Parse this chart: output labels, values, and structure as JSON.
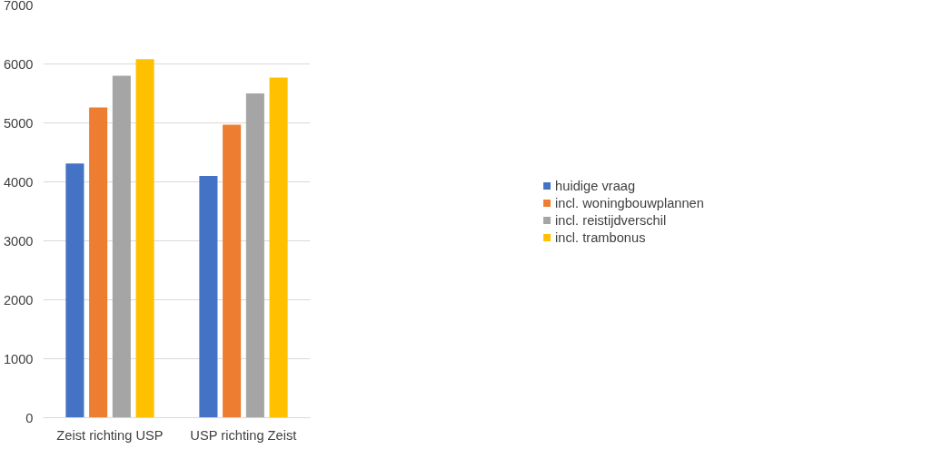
{
  "chart_data": {
    "type": "bar",
    "categories": [
      "Zeist richting USP",
      "USP richting Zeist"
    ],
    "series": [
      {
        "name": "huidige vraag",
        "color": "#4472c4",
        "values": [
          4310,
          4100
        ]
      },
      {
        "name": "incl. woningbouwplannen",
        "color": "#ed7d31",
        "values": [
          5260,
          4970
        ]
      },
      {
        "name": "incl. reistijdverschil",
        "color": "#a5a5a5",
        "values": [
          5800,
          5500
        ]
      },
      {
        "name": "incl. trambonus",
        "color": "#ffc000",
        "values": [
          6080,
          5770
        ]
      }
    ],
    "ylim": [
      0,
      7000
    ],
    "yticks": [
      0,
      1000,
      2000,
      3000,
      4000,
      5000,
      6000,
      7000
    ],
    "grid": "y",
    "legend": "right"
  }
}
